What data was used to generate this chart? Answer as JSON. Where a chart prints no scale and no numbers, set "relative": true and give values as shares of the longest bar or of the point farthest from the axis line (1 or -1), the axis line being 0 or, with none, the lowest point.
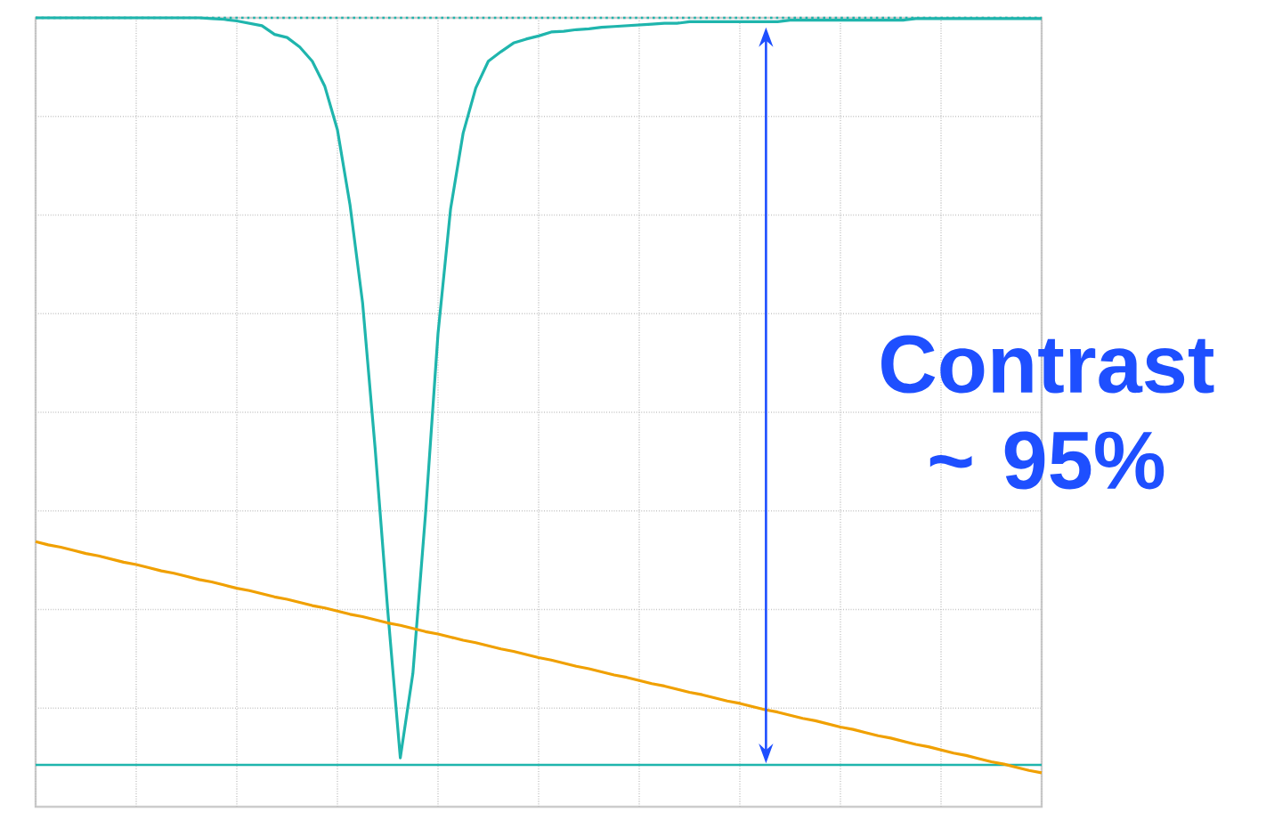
{
  "chart_data": {
    "type": "line",
    "relative": true,
    "grid": true,
    "categories": [
      null,
      null,
      null,
      null,
      null,
      null,
      null,
      null,
      null,
      null,
      null,
      null,
      null,
      null,
      null,
      null,
      null,
      null,
      null,
      null,
      null,
      null,
      null,
      null,
      null,
      null,
      null,
      null,
      null,
      null,
      null,
      null,
      null,
      null,
      null,
      null,
      null,
      null,
      null,
      null,
      null,
      null,
      null,
      null,
      null,
      null,
      null,
      null,
      null,
      null,
      null,
      null,
      null,
      null,
      null,
      null,
      null,
      null,
      null,
      null,
      null,
      null,
      null,
      null,
      null,
      null,
      null,
      null,
      null,
      null,
      null,
      null,
      null,
      null,
      null,
      null,
      null,
      null,
      null,
      null,
      null
    ],
    "series": [
      {
        "color": "#1fb5ad",
        "values": [
          1.0,
          1.0,
          1.0,
          1.0,
          1.0,
          1.0,
          1.0,
          1.0,
          1.0,
          1.0,
          1.0,
          1.0,
          1.0,
          1.0,
          0.999,
          0.998,
          0.996,
          0.993,
          0.99,
          0.979,
          0.975,
          0.963,
          0.945,
          0.913,
          0.858,
          0.763,
          0.639,
          0.454,
          0.249,
          0.062,
          0.169,
          0.37,
          0.6,
          0.758,
          0.854,
          0.911,
          0.945,
          0.957,
          0.968,
          0.973,
          0.977,
          0.982,
          0.983,
          0.985,
          0.986,
          0.988,
          0.989,
          0.99,
          0.991,
          0.992,
          0.993,
          0.993,
          0.995,
          0.995,
          0.995,
          0.995,
          0.995,
          0.995,
          0.995,
          0.995,
          0.997,
          0.997,
          0.997,
          0.997,
          0.997,
          0.997,
          0.997,
          0.997,
          0.997,
          0.997,
          0.999,
          0.999,
          0.999,
          0.999,
          0.999,
          0.999,
          0.999,
          0.999,
          0.999,
          0.999,
          0.999
        ]
      },
      {
        "color": "#f0a000",
        "values": [
          0.336,
          0.332,
          0.329,
          0.325,
          0.321,
          0.318,
          0.314,
          0.31,
          0.307,
          0.303,
          0.299,
          0.296,
          0.292,
          0.288,
          0.285,
          0.281,
          0.277,
          0.274,
          0.27,
          0.266,
          0.263,
          0.259,
          0.255,
          0.252,
          0.248,
          0.244,
          0.241,
          0.237,
          0.233,
          0.23,
          0.226,
          0.222,
          0.219,
          0.215,
          0.211,
          0.208,
          0.204,
          0.2,
          0.197,
          0.193,
          0.189,
          0.186,
          0.182,
          0.178,
          0.175,
          0.171,
          0.167,
          0.164,
          0.16,
          0.156,
          0.153,
          0.149,
          0.145,
          0.142,
          0.138,
          0.134,
          0.131,
          0.127,
          0.123,
          0.12,
          0.116,
          0.112,
          0.109,
          0.105,
          0.101,
          0.098,
          0.094,
          0.09,
          0.087,
          0.083,
          0.079,
          0.076,
          0.072,
          0.068,
          0.065,
          0.061,
          0.057,
          0.054,
          0.05,
          0.046,
          0.043
        ]
      }
    ],
    "ref_lines": [
      {
        "axis": "y",
        "value": 1.0,
        "color": "#1fb5ad",
        "line_style": "dotted"
      },
      {
        "axis": "y",
        "value": 0.053,
        "color": "#1fb5ad"
      }
    ],
    "annotations": [
      "Contrast ~ 95%"
    ]
  }
}
